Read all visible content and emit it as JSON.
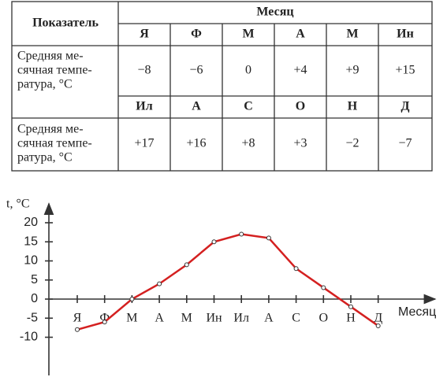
{
  "table": {
    "header": {
      "indicator": "Показатель",
      "month": "Месяц"
    },
    "rows": [
      {
        "months": [
          "Я",
          "Ф",
          "М",
          "А",
          "М",
          "Ин"
        ],
        "label": [
          "Средняя ме-",
          "сячная темпе-",
          "ратура, °C"
        ],
        "values": [
          "−8",
          "−6",
          "0",
          "+4",
          "+9",
          "+15"
        ]
      },
      {
        "months": [
          "Ил",
          "А",
          "С",
          "О",
          "Н",
          "Д"
        ],
        "label": [
          "Средняя ме-",
          "сячная темпе-",
          "ратура, °C"
        ],
        "values": [
          "+17",
          "+16",
          "+8",
          "+3",
          "−2",
          "−7"
        ]
      }
    ]
  },
  "chart_data": {
    "type": "line",
    "y_label": "t, °C",
    "x_label": "Месяц",
    "categories": [
      "Я",
      "Ф",
      "М",
      "А",
      "М",
      "Ин",
      "Ил",
      "А",
      "С",
      "О",
      "Н",
      "Д"
    ],
    "values": [
      -8,
      -6,
      0,
      4,
      9,
      15,
      17,
      16,
      8,
      3,
      -2,
      -7
    ],
    "color": "#d42020",
    "ylim": [
      -20,
      25
    ],
    "yticks": [
      -10,
      -5,
      0,
      5,
      10,
      15,
      20
    ],
    "grid": false
  }
}
